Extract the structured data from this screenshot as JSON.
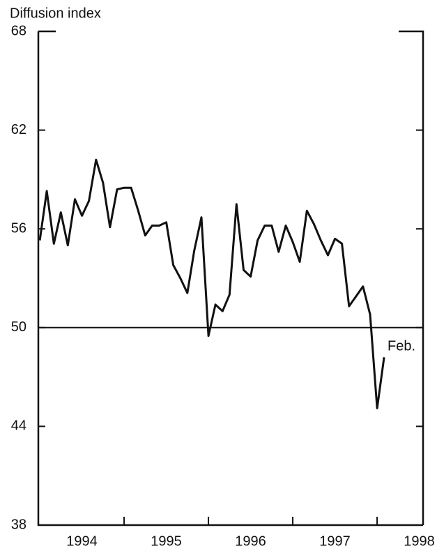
{
  "chart_data": {
    "type": "line",
    "y_axis_label": "Diffusion index",
    "annotation": "Feb.",
    "x": [
      1994.0,
      1994.083,
      1994.167,
      1994.25,
      1994.333,
      1994.417,
      1994.5,
      1994.583,
      1994.667,
      1994.75,
      1994.833,
      1994.917,
      1995.0,
      1995.083,
      1995.167,
      1995.25,
      1995.333,
      1995.417,
      1995.5,
      1995.583,
      1995.667,
      1995.75,
      1995.833,
      1995.917,
      1996.0,
      1996.083,
      1996.167,
      1996.25,
      1996.333,
      1996.417,
      1996.5,
      1996.583,
      1996.667,
      1996.75,
      1996.833,
      1996.917,
      1997.0,
      1997.083,
      1997.167,
      1997.25,
      1997.333,
      1997.417,
      1997.5,
      1997.583,
      1997.667,
      1997.75,
      1997.833,
      1997.917,
      1998.0,
      1998.083
    ],
    "values": [
      55.3,
      58.3,
      55.1,
      57.0,
      55.0,
      57.8,
      56.8,
      57.7,
      60.2,
      58.8,
      56.1,
      58.4,
      58.5,
      58.5,
      57.1,
      55.6,
      56.2,
      56.2,
      56.4,
      53.8,
      53.0,
      52.1,
      54.7,
      56.7,
      49.5,
      51.4,
      51.0,
      52.0,
      57.5,
      53.5,
      53.1,
      55.3,
      56.2,
      56.2,
      54.6,
      56.2,
      55.2,
      54.0,
      57.1,
      56.3,
      55.3,
      54.4,
      55.4,
      55.1,
      51.3,
      51.9,
      52.5,
      50.8,
      45.1,
      48.2
    ],
    "color": "#111111",
    "xlim": [
      1993.983,
      1998.545
    ],
    "xticks": [
      {
        "value": 1994.5,
        "label": "1994"
      },
      {
        "value": 1995.5,
        "label": "1995"
      },
      {
        "value": 1996.5,
        "label": "1996"
      },
      {
        "value": 1997.5,
        "label": "1997"
      },
      {
        "value": 1998.5,
        "label": "1998"
      }
    ],
    "x_boundary_ticks": [
      1995,
      1996,
      1997,
      1998
    ],
    "ylim": [
      38,
      68
    ],
    "yticks": [
      38,
      44,
      50,
      56,
      62,
      68
    ],
    "reference_line": 50
  }
}
